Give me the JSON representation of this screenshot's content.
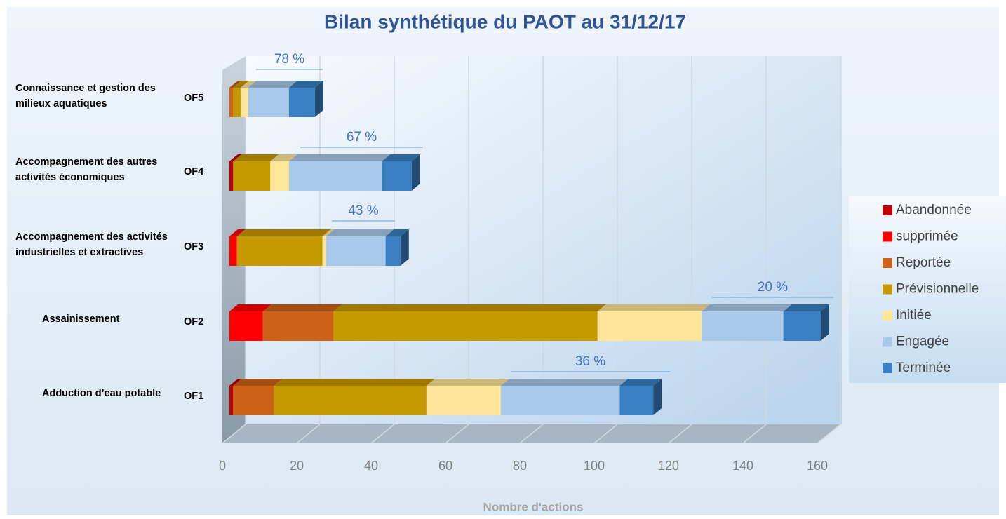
{
  "chart_data": {
    "type": "bar",
    "orientation": "horizontal",
    "stacked": true,
    "title": "Bilan synthétique du PAOT au 31/12/17",
    "x_label": "Nombre d'actions",
    "categories": [
      "OF5",
      "OF4",
      "OF3",
      "OF2",
      "OF1"
    ],
    "category_labels": [
      [
        "Connaissance et gestion des",
        "milieux aquatiques"
      ],
      [
        "Accompagnement des autres",
        "activités économiques"
      ],
      [
        "Accompagnement des activités",
        "industrielles et extractives"
      ],
      [
        "Assainissement"
      ],
      [
        "Adduction d’eau potable"
      ]
    ],
    "percent_labels": [
      "78 %",
      "67 %",
      "43 %",
      "20 %",
      "36 %"
    ],
    "series": [
      {
        "name": "Abandonnée",
        "color": "#c00000",
        "values": [
          0,
          1,
          0,
          0,
          1
        ]
      },
      {
        "name": "supprimée",
        "color": "#ff0000",
        "values": [
          0,
          0,
          2,
          9,
          0
        ]
      },
      {
        "name": "Reportée",
        "color": "#cc6117",
        "values": [
          1,
          0,
          0,
          19,
          11
        ]
      },
      {
        "name": "Prévisionnelle",
        "color": "#c59900",
        "values": [
          2,
          10,
          23,
          71,
          41
        ]
      },
      {
        "name": "Initiée",
        "color": "#ffe699",
        "values": [
          2,
          5,
          1,
          28,
          20
        ]
      },
      {
        "name": "Engagée",
        "color": "#a9c9ea",
        "values": [
          11,
          25,
          16,
          22,
          32
        ]
      },
      {
        "name": "Terminée",
        "color": "#3a7fc1",
        "values": [
          7,
          8,
          4,
          10,
          9
        ]
      }
    ],
    "xlim": [
      0,
      160
    ],
    "xticks": [
      0,
      20,
      40,
      60,
      80,
      100,
      120,
      140,
      160
    ],
    "grid": true,
    "legend": "right"
  }
}
